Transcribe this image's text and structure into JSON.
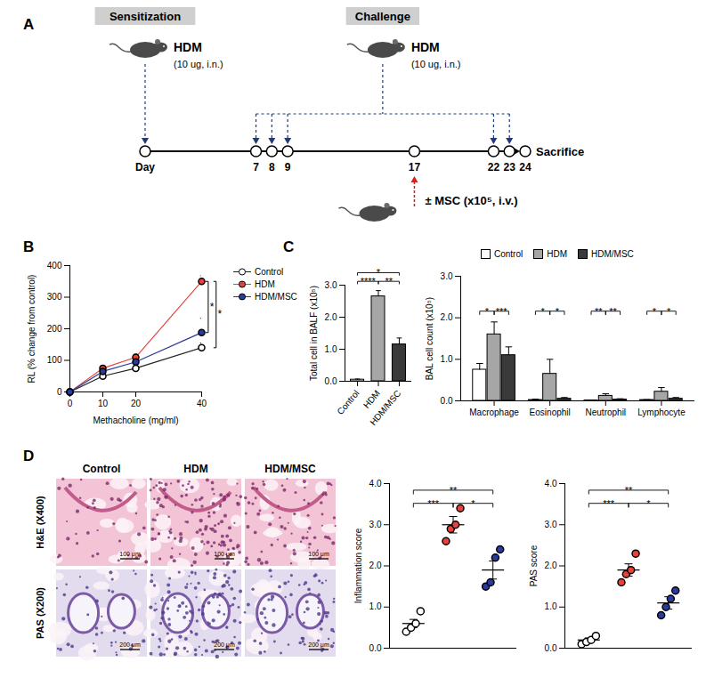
{
  "panel_labels": [
    "A",
    "B",
    "C",
    "D"
  ],
  "timeline": {
    "phases": [
      {
        "title": "Sensitization",
        "agent": "HDM",
        "dose": "(10 ug, i.n.)",
        "days": [
          0
        ]
      },
      {
        "title": "Challenge",
        "agent": "HDM",
        "dose": "(10 ug, i.n.)",
        "days": [
          7,
          8,
          9,
          22,
          23
        ]
      }
    ],
    "treatment": {
      "label": "± MSC (x10⁵, i.v.)",
      "day": 17
    },
    "end": {
      "label": "Sacrifice",
      "day": 24
    },
    "days": [
      {
        "value": 0,
        "label": "Day"
      },
      7,
      8,
      9,
      17,
      22,
      23,
      24
    ]
  },
  "histology": {
    "columns": [
      "Control",
      "HDM",
      "HDM/MSC"
    ],
    "rows": [
      {
        "label": "H&E (X400)",
        "scale_bar": "100 μm"
      },
      {
        "label": "PAS (X200)",
        "scale_bar": "200 μm"
      }
    ]
  },
  "chart_data": [
    {
      "type": "line",
      "x_label": "Methacholine (mg/ml)",
      "y_label": "RL (% change from control)",
      "x": [
        0,
        10,
        20,
        40
      ],
      "xlim": [
        0,
        40
      ],
      "xticks": [
        0,
        10,
        20,
        40
      ],
      "ylim": [
        0,
        400
      ],
      "yticks": [
        0,
        100,
        200,
        300,
        400
      ],
      "legend": "top-right",
      "series": [
        {
          "name": "Control",
          "color": "#ffffff",
          "values": [
            0,
            50,
            75,
            140
          ],
          "errors": [
            0,
            8,
            8,
            15
          ]
        },
        {
          "name": "HDM",
          "color": "#e8423c",
          "values": [
            0,
            75,
            110,
            350
          ],
          "errors": [
            0,
            8,
            10,
            18
          ]
        },
        {
          "name": "HDM/MSC",
          "color": "#2a3b9e",
          "values": [
            0,
            65,
            95,
            188
          ],
          "errors": [
            0,
            8,
            10,
            45
          ]
        }
      ],
      "comparisons": [
        {
          "from": "HDM",
          "to": "HDM/MSC",
          "label": "*"
        },
        {
          "from": "HDM",
          "to": "Control",
          "label": "*"
        }
      ]
    },
    {
      "type": "bar",
      "y_label": "Total cell in BALF (x10⁵)",
      "categories": [
        "Control",
        "HDM",
        "HDM/MSC"
      ],
      "values": [
        0.05,
        2.65,
        1.15
      ],
      "errors": [
        0.02,
        0.18,
        0.2
      ],
      "colors": [
        "#ffffff",
        "#a6a6a6",
        "#3a3a3a"
      ],
      "ylim": [
        0,
        3
      ],
      "yticks": [
        0,
        1,
        2,
        3
      ],
      "comparisons": [
        {
          "from": "Control",
          "to": "HDM",
          "label": "****"
        },
        {
          "from": "HDM",
          "to": "HDM/MSC",
          "label": "**"
        },
        {
          "from": "Control",
          "to": "HDM/MSC",
          "label": "*"
        }
      ]
    },
    {
      "type": "bar",
      "y_label": "BAL cell count (x10⁵)",
      "categories": [
        "Macrophage",
        "Eosinophil",
        "Neutrophil",
        "Lymphocyte"
      ],
      "ylim": [
        0,
        3
      ],
      "yticks": [
        0,
        1,
        2,
        3
      ],
      "legend": "top",
      "series": [
        {
          "name": "Control",
          "color": "#ffffff",
          "values": [
            0.75,
            0.02,
            0.01,
            0.02
          ],
          "errors": [
            0.15,
            0.02,
            0.01,
            0.01
          ]
        },
        {
          "name": "HDM",
          "color": "#a6a6a6",
          "values": [
            1.6,
            0.65,
            0.12,
            0.22
          ],
          "errors": [
            0.3,
            0.35,
            0.05,
            0.1
          ]
        },
        {
          "name": "HDM/MSC",
          "color": "#3a3a3a",
          "values": [
            1.1,
            0.05,
            0.03,
            0.05
          ],
          "errors": [
            0.2,
            0.03,
            0.02,
            0.03
          ]
        }
      ],
      "comparisons": [
        {
          "category": "Macrophage",
          "from": "Control",
          "to": "HDM",
          "label": "*"
        },
        {
          "category": "Macrophage",
          "from": "HDM",
          "to": "HDM/MSC",
          "label": "***"
        },
        {
          "category": "Eosinophil",
          "from": "Control",
          "to": "HDM",
          "label": "*"
        },
        {
          "category": "Eosinophil",
          "from": "HDM",
          "to": "HDM/MSC",
          "label": "*"
        },
        {
          "category": "Neutrophil",
          "from": "Control",
          "to": "HDM",
          "label": "**"
        },
        {
          "category": "Neutrophil",
          "from": "HDM",
          "to": "HDM/MSC",
          "label": "**"
        },
        {
          "category": "Lymphocyte",
          "from": "Control",
          "to": "HDM",
          "label": "*"
        },
        {
          "category": "Lymphocyte",
          "from": "HDM",
          "to": "HDM/MSC",
          "label": "*"
        }
      ]
    },
    {
      "type": "scatter",
      "y_label": "Inflammation score",
      "tick_labels": "y",
      "ylim": [
        0,
        4
      ],
      "yticks": [
        0,
        1,
        2,
        3,
        4
      ],
      "groups": [
        {
          "name": "Control",
          "color": "#ffffff",
          "points": [
            0.4,
            0.5,
            0.6,
            0.9
          ],
          "mean": 0.6,
          "sem": 0.1
        },
        {
          "name": "HDM",
          "color": "#e8423c",
          "points": [
            2.6,
            2.9,
            3.0,
            3.4
          ],
          "mean": 3.0,
          "sem": 0.2
        },
        {
          "name": "HDM/MSC",
          "color": "#2a3b9e",
          "points": [
            1.5,
            1.6,
            2.2,
            2.4
          ],
          "mean": 1.9,
          "sem": 0.22
        }
      ],
      "comparisons": [
        {
          "from": "Control",
          "to": "HDM",
          "label": "***"
        },
        {
          "from": "HDM",
          "to": "HDM/MSC",
          "label": "*"
        },
        {
          "from": "Control",
          "to": "HDM/MSC",
          "label": "**"
        }
      ]
    },
    {
      "type": "scatter",
      "y_label": "PAS score",
      "tick_labels": "y",
      "ylim": [
        0,
        4
      ],
      "yticks": [
        0,
        1,
        2,
        3,
        4
      ],
      "groups": [
        {
          "name": "Control",
          "color": "#ffffff",
          "points": [
            0.1,
            0.15,
            0.2,
            0.3
          ],
          "mean": 0.2,
          "sem": 0.05
        },
        {
          "name": "HDM",
          "color": "#e8423c",
          "points": [
            1.6,
            1.8,
            1.9,
            2.3
          ],
          "mean": 1.9,
          "sem": 0.15
        },
        {
          "name": "HDM/MSC",
          "color": "#2a3b9e",
          "points": [
            0.8,
            1.0,
            1.2,
            1.4
          ],
          "mean": 1.1,
          "sem": 0.15
        }
      ],
      "comparisons": [
        {
          "from": "Control",
          "to": "HDM",
          "label": "***"
        },
        {
          "from": "HDM",
          "to": "HDM/MSC",
          "label": "*"
        },
        {
          "from": "Control",
          "to": "HDM/MSC",
          "label": "**"
        }
      ]
    }
  ]
}
